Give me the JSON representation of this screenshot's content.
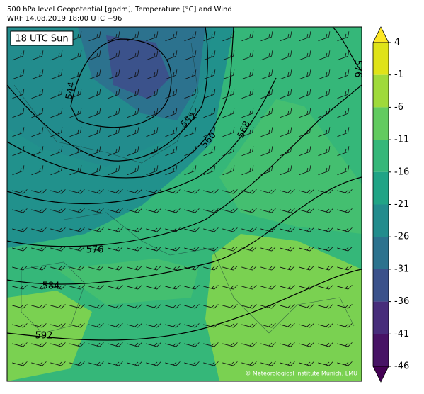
{
  "header": {
    "title": "500 hPa level Geopotential [gpdm], Temperature [°C] and Wind",
    "subtitle": "WRF 14.08.2019 18:00 UTC +96"
  },
  "map": {
    "time_label": "18 UTC Sun",
    "contour_labels": [
      544,
      552,
      560,
      568,
      576,
      576,
      584,
      592
    ],
    "credit": "© Meteorological Institute Munich, LMU"
  },
  "colorbar": {
    "ticks": [
      4,
      -1,
      -6,
      -11,
      -16,
      -21,
      -26,
      -31,
      -36,
      -41,
      -46
    ],
    "colors": [
      "#dfe318",
      "#9fda3a",
      "#62cb5f",
      "#35b779",
      "#20a486",
      "#228c8d",
      "#2c728e",
      "#3b528b",
      "#472d7b",
      "#471365"
    ],
    "extend_colors": [
      "#fde725",
      "#440154"
    ]
  }
}
